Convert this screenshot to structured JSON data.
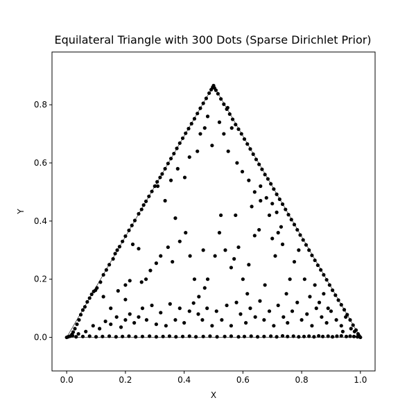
{
  "chart_data": {
    "type": "scatter",
    "title": "Equilateral Triangle with 300 Dots (Sparse Dirichlet Prior)",
    "xlabel": "X",
    "ylabel": "Y",
    "xlim": [
      -0.05,
      1.05
    ],
    "ylim": [
      -0.1155,
      0.9815
    ],
    "x_ticks": [
      0.0,
      0.2,
      0.4,
      0.6,
      0.8,
      1.0
    ],
    "x_tick_labels": [
      "0.0",
      "0.2",
      "0.4",
      "0.6",
      "0.8",
      "1.0"
    ],
    "y_ticks": [
      0.0,
      0.2,
      0.4,
      0.6,
      0.8
    ],
    "y_tick_labels": [
      "0.0",
      "0.2",
      "0.4",
      "0.6",
      "0.8"
    ],
    "grid": false,
    "aspect": "equal",
    "triangle_vertices": [
      [
        0.0,
        0.0
      ],
      [
        1.0,
        0.0
      ],
      [
        0.5,
        0.866
      ]
    ],
    "marker_color": "#000000",
    "outline_color": "#000000",
    "series": [
      {
        "points": [
          [
            0.0,
            0.0
          ],
          [
            0.005,
            0.002
          ],
          [
            0.012,
            0.004
          ],
          [
            0.018,
            0.01
          ],
          [
            0.022,
            0.018
          ],
          [
            0.028,
            0.03
          ],
          [
            0.035,
            0.045
          ],
          [
            0.042,
            0.06
          ],
          [
            0.048,
            0.078
          ],
          [
            0.055,
            0.094
          ],
          [
            0.062,
            0.105
          ],
          [
            0.07,
            0.122
          ],
          [
            0.078,
            0.135
          ],
          [
            0.085,
            0.148
          ],
          [
            0.092,
            0.158
          ],
          [
            0.098,
            0.162
          ],
          [
            0.103,
            0.17
          ],
          [
            0.115,
            0.19
          ],
          [
            0.125,
            0.215
          ],
          [
            0.135,
            0.232
          ],
          [
            0.145,
            0.25
          ],
          [
            0.158,
            0.27
          ],
          [
            0.165,
            0.288
          ],
          [
            0.172,
            0.3
          ],
          [
            0.18,
            0.312
          ],
          [
            0.19,
            0.33
          ],
          [
            0.2,
            0.348
          ],
          [
            0.212,
            0.368
          ],
          [
            0.222,
            0.385
          ],
          [
            0.232,
            0.402
          ],
          [
            0.245,
            0.425
          ],
          [
            0.255,
            0.44
          ],
          [
            0.262,
            0.455
          ],
          [
            0.27,
            0.468
          ],
          [
            0.28,
            0.485
          ],
          [
            0.29,
            0.502
          ],
          [
            0.3,
            0.52
          ],
          [
            0.308,
            0.535
          ],
          [
            0.318,
            0.55
          ],
          [
            0.325,
            0.562
          ],
          [
            0.335,
            0.58
          ],
          [
            0.345,
            0.598
          ],
          [
            0.355,
            0.615
          ],
          [
            0.365,
            0.632
          ],
          [
            0.375,
            0.65
          ],
          [
            0.385,
            0.668
          ],
          [
            0.395,
            0.685
          ],
          [
            0.405,
            0.702
          ],
          [
            0.415,
            0.718
          ],
          [
            0.425,
            0.735
          ],
          [
            0.435,
            0.752
          ],
          [
            0.445,
            0.77
          ],
          [
            0.455,
            0.788
          ],
          [
            0.465,
            0.805
          ],
          [
            0.475,
            0.822
          ],
          [
            0.485,
            0.84
          ],
          [
            0.492,
            0.852
          ],
          [
            0.497,
            0.86
          ],
          [
            0.5,
            0.866
          ],
          [
            0.503,
            0.858
          ],
          [
            0.508,
            0.85
          ],
          [
            0.515,
            0.838
          ],
          [
            0.525,
            0.82
          ],
          [
            0.535,
            0.802
          ],
          [
            0.545,
            0.785
          ],
          [
            0.555,
            0.768
          ],
          [
            0.565,
            0.75
          ],
          [
            0.575,
            0.732
          ],
          [
            0.585,
            0.716
          ],
          [
            0.595,
            0.7
          ],
          [
            0.605,
            0.682
          ],
          [
            0.615,
            0.665
          ],
          [
            0.625,
            0.648
          ],
          [
            0.635,
            0.63
          ],
          [
            0.645,
            0.612
          ],
          [
            0.655,
            0.595
          ],
          [
            0.665,
            0.578
          ],
          [
            0.675,
            0.56
          ],
          [
            0.685,
            0.545
          ],
          [
            0.695,
            0.528
          ],
          [
            0.705,
            0.51
          ],
          [
            0.715,
            0.492
          ],
          [
            0.725,
            0.475
          ],
          [
            0.735,
            0.458
          ],
          [
            0.745,
            0.44
          ],
          [
            0.755,
            0.422
          ],
          [
            0.765,
            0.405
          ],
          [
            0.775,
            0.388
          ],
          [
            0.785,
            0.37
          ],
          [
            0.795,
            0.352
          ],
          [
            0.805,
            0.335
          ],
          [
            0.815,
            0.318
          ],
          [
            0.825,
            0.3
          ],
          [
            0.835,
            0.282
          ],
          [
            0.845,
            0.265
          ],
          [
            0.855,
            0.248
          ],
          [
            0.865,
            0.232
          ],
          [
            0.875,
            0.215
          ],
          [
            0.885,
            0.198
          ],
          [
            0.895,
            0.18
          ],
          [
            0.905,
            0.162
          ],
          [
            0.915,
            0.145
          ],
          [
            0.925,
            0.128
          ],
          [
            0.935,
            0.112
          ],
          [
            0.945,
            0.095
          ],
          [
            0.955,
            0.078
          ],
          [
            0.965,
            0.06
          ],
          [
            0.975,
            0.042
          ],
          [
            0.985,
            0.025
          ],
          [
            0.992,
            0.012
          ],
          [
            0.996,
            0.005
          ],
          [
            1.0,
            0.0
          ],
          [
            0.99,
            0.002
          ],
          [
            0.978,
            0.003
          ],
          [
            0.965,
            0.004
          ],
          [
            0.952,
            0.003
          ],
          [
            0.935,
            0.005
          ],
          [
            0.92,
            0.004
          ],
          [
            0.905,
            0.002
          ],
          [
            0.89,
            0.004
          ],
          [
            0.872,
            0.003
          ],
          [
            0.858,
            0.005
          ],
          [
            0.842,
            0.002
          ],
          [
            0.825,
            0.004
          ],
          [
            0.808,
            0.003
          ],
          [
            0.79,
            0.002
          ],
          [
            0.772,
            0.004
          ],
          [
            0.752,
            0.003
          ],
          [
            0.735,
            0.005
          ],
          [
            0.715,
            0.002
          ],
          [
            0.695,
            0.004
          ],
          [
            0.672,
            0.003
          ],
          [
            0.65,
            0.002
          ],
          [
            0.628,
            0.004
          ],
          [
            0.605,
            0.003
          ],
          [
            0.585,
            0.002
          ],
          [
            0.56,
            0.004
          ],
          [
            0.538,
            0.003
          ],
          [
            0.512,
            0.002
          ],
          [
            0.488,
            0.004
          ],
          [
            0.465,
            0.003
          ],
          [
            0.44,
            0.002
          ],
          [
            0.418,
            0.004
          ],
          [
            0.395,
            0.003
          ],
          [
            0.372,
            0.002
          ],
          [
            0.35,
            0.004
          ],
          [
            0.328,
            0.003
          ],
          [
            0.305,
            0.002
          ],
          [
            0.282,
            0.004
          ],
          [
            0.258,
            0.003
          ],
          [
            0.235,
            0.002
          ],
          [
            0.212,
            0.004
          ],
          [
            0.19,
            0.003
          ],
          [
            0.168,
            0.002
          ],
          [
            0.145,
            0.004
          ],
          [
            0.122,
            0.003
          ],
          [
            0.1,
            0.002
          ],
          [
            0.078,
            0.004
          ],
          [
            0.055,
            0.003
          ],
          [
            0.032,
            0.002
          ],
          [
            0.02,
            0.006
          ],
          [
            0.04,
            0.012
          ],
          [
            0.065,
            0.02
          ],
          [
            0.09,
            0.04
          ],
          [
            0.112,
            0.03
          ],
          [
            0.132,
            0.055
          ],
          [
            0.15,
            0.045
          ],
          [
            0.17,
            0.07
          ],
          [
            0.185,
            0.035
          ],
          [
            0.2,
            0.06
          ],
          [
            0.215,
            0.08
          ],
          [
            0.23,
            0.05
          ],
          [
            0.245,
            0.07
          ],
          [
            0.258,
            0.1
          ],
          [
            0.272,
            0.06
          ],
          [
            0.29,
            0.11
          ],
          [
            0.305,
            0.045
          ],
          [
            0.32,
            0.085
          ],
          [
            0.338,
            0.04
          ],
          [
            0.352,
            0.115
          ],
          [
            0.37,
            0.06
          ],
          [
            0.385,
            0.1
          ],
          [
            0.4,
            0.05
          ],
          [
            0.418,
            0.09
          ],
          [
            0.432,
            0.118
          ],
          [
            0.448,
            0.08
          ],
          [
            0.462,
            0.06
          ],
          [
            0.478,
            0.1
          ],
          [
            0.495,
            0.04
          ],
          [
            0.51,
            0.09
          ],
          [
            0.528,
            0.06
          ],
          [
            0.545,
            0.11
          ],
          [
            0.56,
            0.04
          ],
          [
            0.578,
            0.12
          ],
          [
            0.592,
            0.08
          ],
          [
            0.61,
            0.05
          ],
          [
            0.625,
            0.1
          ],
          [
            0.642,
            0.07
          ],
          [
            0.658,
            0.125
          ],
          [
            0.672,
            0.06
          ],
          [
            0.69,
            0.09
          ],
          [
            0.705,
            0.04
          ],
          [
            0.72,
            0.11
          ],
          [
            0.738,
            0.07
          ],
          [
            0.752,
            0.05
          ],
          [
            0.768,
            0.09
          ],
          [
            0.785,
            0.12
          ],
          [
            0.8,
            0.06
          ],
          [
            0.818,
            0.08
          ],
          [
            0.835,
            0.04
          ],
          [
            0.85,
            0.1
          ],
          [
            0.868,
            0.07
          ],
          [
            0.885,
            0.05
          ],
          [
            0.9,
            0.09
          ],
          [
            0.918,
            0.06
          ],
          [
            0.935,
            0.04
          ],
          [
            0.95,
            0.07
          ],
          [
            0.968,
            0.03
          ],
          [
            0.98,
            0.02
          ],
          [
            0.94,
            0.02
          ],
          [
            0.175,
            0.16
          ],
          [
            0.2,
            0.18
          ],
          [
            0.215,
            0.195
          ],
          [
            0.225,
            0.32
          ],
          [
            0.245,
            0.305
          ],
          [
            0.255,
            0.19
          ],
          [
            0.27,
            0.2
          ],
          [
            0.285,
            0.23
          ],
          [
            0.305,
            0.255
          ],
          [
            0.32,
            0.28
          ],
          [
            0.345,
            0.31
          ],
          [
            0.36,
            0.26
          ],
          [
            0.37,
            0.41
          ],
          [
            0.385,
            0.33
          ],
          [
            0.405,
            0.36
          ],
          [
            0.42,
            0.28
          ],
          [
            0.435,
            0.2
          ],
          [
            0.45,
            0.14
          ],
          [
            0.465,
            0.3
          ],
          [
            0.47,
            0.17
          ],
          [
            0.48,
            0.2
          ],
          [
            0.495,
            0.66
          ],
          [
            0.505,
            0.28
          ],
          [
            0.52,
            0.36
          ],
          [
            0.525,
            0.42
          ],
          [
            0.54,
            0.3
          ],
          [
            0.55,
            0.64
          ],
          [
            0.56,
            0.24
          ],
          [
            0.57,
            0.27
          ],
          [
            0.575,
            0.42
          ],
          [
            0.585,
            0.31
          ],
          [
            0.6,
            0.2
          ],
          [
            0.615,
            0.15
          ],
          [
            0.62,
            0.25
          ],
          [
            0.63,
            0.45
          ],
          [
            0.64,
            0.35
          ],
          [
            0.655,
            0.37
          ],
          [
            0.66,
            0.52
          ],
          [
            0.675,
            0.18
          ],
          [
            0.69,
            0.42
          ],
          [
            0.7,
            0.34
          ],
          [
            0.71,
            0.28
          ],
          [
            0.72,
            0.36
          ],
          [
            0.735,
            0.32
          ],
          [
            0.748,
            0.15
          ],
          [
            0.76,
            0.2
          ],
          [
            0.775,
            0.26
          ],
          [
            0.79,
            0.3
          ],
          [
            0.81,
            0.2
          ],
          [
            0.828,
            0.14
          ],
          [
            0.845,
            0.18
          ],
          [
            0.86,
            0.12
          ],
          [
            0.875,
            0.15
          ],
          [
            0.89,
            0.1
          ],
          [
            0.31,
            0.52
          ],
          [
            0.335,
            0.47
          ],
          [
            0.355,
            0.54
          ],
          [
            0.378,
            0.58
          ],
          [
            0.402,
            0.55
          ],
          [
            0.418,
            0.62
          ],
          [
            0.445,
            0.64
          ],
          [
            0.455,
            0.7
          ],
          [
            0.47,
            0.72
          ],
          [
            0.48,
            0.76
          ],
          [
            0.52,
            0.74
          ],
          [
            0.535,
            0.7
          ],
          [
            0.548,
            0.79
          ],
          [
            0.562,
            0.72
          ],
          [
            0.58,
            0.6
          ],
          [
            0.598,
            0.57
          ],
          [
            0.62,
            0.54
          ],
          [
            0.64,
            0.5
          ],
          [
            0.66,
            0.47
          ],
          [
            0.68,
            0.48
          ],
          [
            0.7,
            0.46
          ],
          [
            0.715,
            0.43
          ],
          [
            0.73,
            0.38
          ],
          [
            0.2,
            0.13
          ],
          [
            0.15,
            0.1
          ],
          [
            0.125,
            0.14
          ]
        ]
      }
    ]
  }
}
